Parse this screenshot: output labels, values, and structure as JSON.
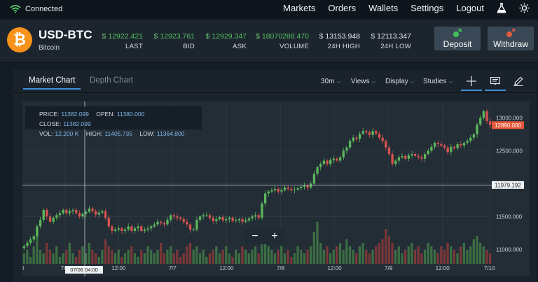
{
  "status": {
    "label": "Connected"
  },
  "nav": {
    "items": [
      "Markets",
      "Orders",
      "Wallets",
      "Settings",
      "Logout"
    ],
    "icons": [
      "flask-icon",
      "sun-icon"
    ]
  },
  "market": {
    "symbol": "USD-BTC",
    "name": "Bitcoin",
    "stats": [
      {
        "value": "12922.421",
        "label": "LAST"
      },
      {
        "value": "12923.761",
        "label": "BID"
      },
      {
        "value": "12929.347",
        "label": "ASK"
      },
      {
        "value": "18070288.470",
        "label": "VOLUME"
      },
      {
        "value": "13153.948",
        "label": "24H HIGH"
      },
      {
        "value": "12113.347",
        "label": "24H LOW"
      }
    ],
    "currency_symbol": "$"
  },
  "actions": {
    "deposit": "Deposit",
    "withdraw": "Withdraw",
    "deposit_color": "#3ec05a",
    "withdraw_color": "#e05b3f"
  },
  "tabs": {
    "market_chart": "Market Chart",
    "depth_chart": "Depth Chart"
  },
  "toolbar": {
    "interval": "30m",
    "views": "Views",
    "display": "Display",
    "studies": "Studies"
  },
  "ohlc": {
    "price_label": "PRICE:",
    "price": "11382.099",
    "open_label": "OPEN:",
    "open": "11380.000",
    "close_label": "CLOSE:",
    "close": "11382.099",
    "vol_label": "VOL:",
    "vol": "12.200 K",
    "high_label": "HIGH:",
    "high": "11405.735",
    "low_label": "LOW:",
    "low": "11364.800"
  },
  "chart_data": {
    "type": "candlestick",
    "y_ticks": [
      "13000.000",
      "12500.000",
      "12000.000",
      "11500.000",
      "11000.000"
    ],
    "y_tick_values": [
      13000,
      12500,
      12000,
      11500,
      11000
    ],
    "ylim": [
      10780,
      13250
    ],
    "x_ticks": [
      "0",
      "7/6",
      "12:00",
      "7/7",
      "12:00",
      "7/8",
      "12:00",
      "7/9",
      "12:00",
      "7/10"
    ],
    "current_price_label": "12890.000",
    "current_price": 12890,
    "crosshair_price_label": "11979.192",
    "crosshair_price": 11979,
    "crosshair_date": "07/06 04:00",
    "up_color": "#5cb85c",
    "down_color": "#d9534f",
    "close_path": [
      11050,
      11100,
      11150,
      11200,
      11350,
      11450,
      11600,
      11500,
      11420,
      11480,
      11520,
      11550,
      11600,
      11550,
      11580,
      11600,
      11550,
      11500,
      11540,
      11570,
      11620,
      11580,
      11530,
      11560,
      11580,
      11480,
      11350,
      11280,
      11300,
      11320,
      11280,
      11300,
      11350,
      11280,
      11320,
      11350,
      11280,
      11300,
      11320,
      11350,
      11380,
      11420,
      11400,
      11380,
      11450,
      11520,
      11500,
      11480,
      11460,
      11420,
      11380,
      11300,
      11300,
      11450,
      11500,
      11520,
      11520,
      11480,
      11430,
      11460,
      11490,
      11440,
      11460,
      11480,
      11430,
      11440,
      11460,
      11420,
      11440,
      11470,
      11500,
      11520,
      11480,
      11700,
      11850,
      11880,
      11900,
      11920,
      11880,
      11900,
      11940,
      11920,
      11900,
      11910,
      11930,
      11950,
      11970,
      11940,
      12000,
      12150,
      12250,
      12300,
      12350,
      12300,
      12360,
      12380,
      12350,
      12400,
      12500,
      12550,
      12650,
      12700,
      12680,
      12760,
      12800,
      12780,
      12740,
      12800,
      12760,
      12700,
      12650,
      12550,
      12450,
      12300,
      12350,
      12400,
      12420,
      12380,
      12430,
      12450,
      12420,
      12400,
      12380,
      12450,
      12500,
      12560,
      12620,
      12600,
      12580,
      12550,
      12480,
      12560,
      12540,
      12600,
      12580,
      12620,
      12650,
      12700,
      12750,
      12900,
      13000,
      13100,
      12950,
      12890
    ],
    "volume": [
      3,
      4,
      2,
      5,
      8,
      4,
      3,
      6,
      4,
      3,
      5,
      2,
      3,
      4,
      6,
      3,
      2,
      4,
      5,
      3,
      6,
      4,
      3,
      2,
      4,
      7,
      5,
      4,
      3,
      4,
      2,
      3,
      4,
      5,
      3,
      2,
      4,
      3,
      5,
      4,
      3,
      4,
      6,
      3,
      4,
      5,
      3,
      4,
      2,
      3,
      5,
      6,
      4,
      5,
      3,
      4,
      2,
      3,
      4,
      5,
      3,
      4,
      5,
      3,
      2,
      4,
      3,
      5,
      4,
      3,
      4,
      5,
      3,
      6,
      8,
      5,
      4,
      3,
      4,
      5,
      3,
      4,
      2,
      3,
      5,
      4,
      3,
      4,
      5,
      9,
      12,
      6,
      4,
      5,
      3,
      4,
      5,
      6,
      4,
      7,
      5,
      4,
      3,
      5,
      6,
      4,
      3,
      4,
      5,
      6,
      7,
      10,
      8,
      6,
      4,
      5,
      3,
      4,
      5,
      6,
      4,
      5,
      3,
      4,
      6,
      5,
      4,
      3,
      5,
      4,
      6,
      5,
      4,
      3,
      5,
      6,
      4,
      5,
      7,
      8,
      6,
      5,
      4,
      3
    ]
  }
}
